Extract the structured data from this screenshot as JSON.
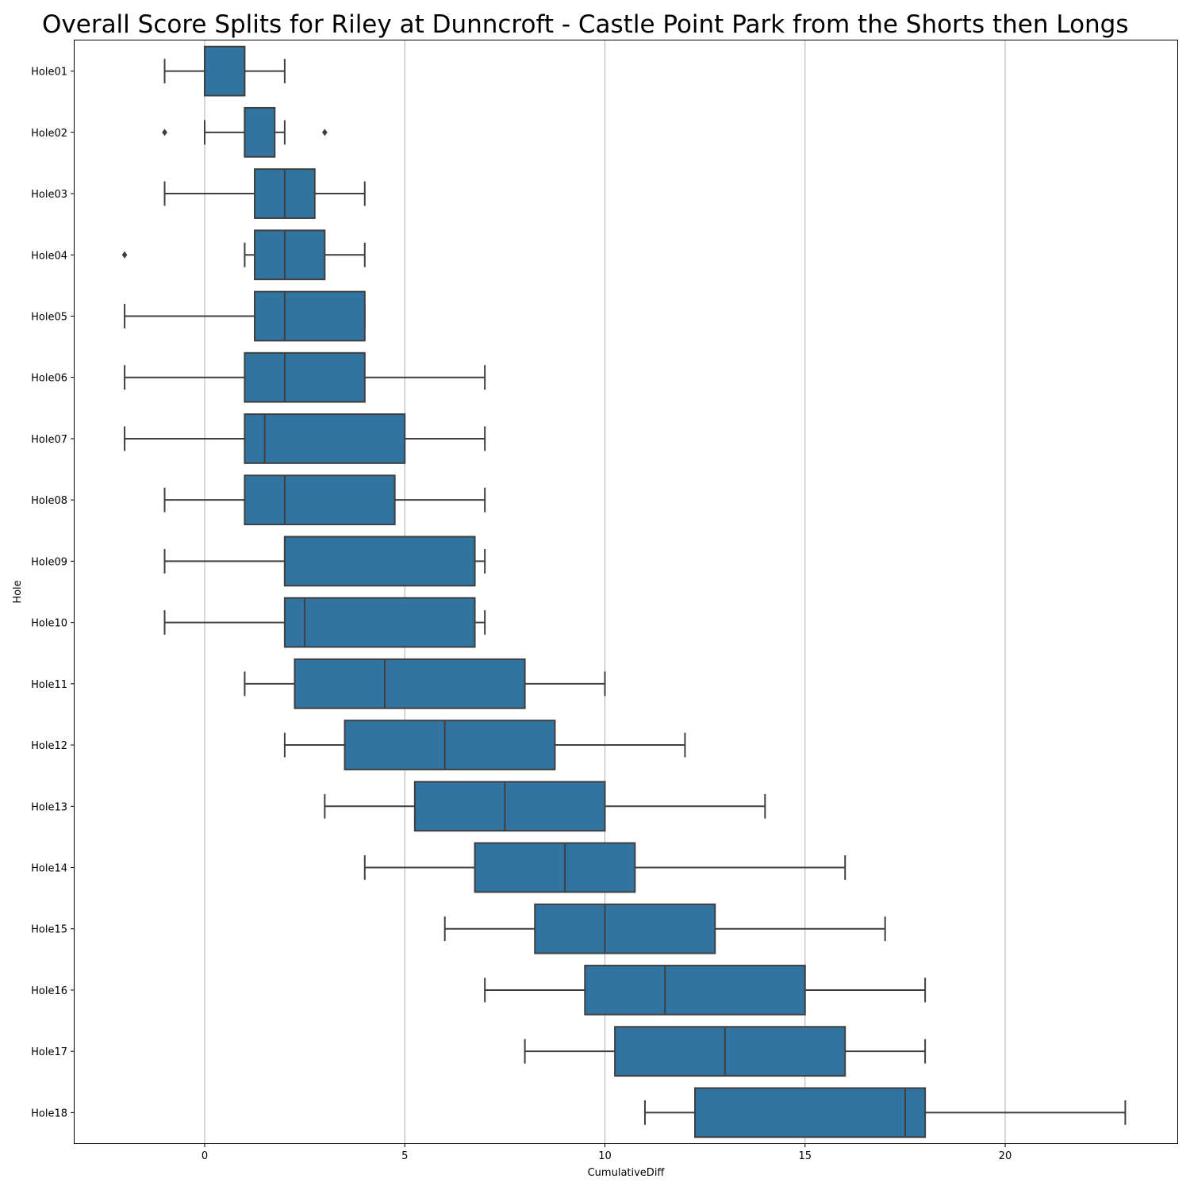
{
  "chart_data": {
    "type": "boxplot",
    "orientation": "horizontal",
    "title": "Overall Score Splits for Riley at Dunncroft - Castle Point Park from the Shorts then Longs",
    "xlabel": "CumulativeDiff",
    "ylabel": "Hole",
    "xlim": [
      -3.25,
      24.3
    ],
    "x_ticks": [
      0,
      5,
      10,
      15,
      20
    ],
    "grid": "vertical",
    "colors": {
      "box": "#3274a1",
      "line": "#3f3f3f",
      "grid": "#b0b0b0"
    },
    "categories": [
      "Hole01",
      "Hole02",
      "Hole03",
      "Hole04",
      "Hole05",
      "Hole06",
      "Hole07",
      "Hole08",
      "Hole09",
      "Hole10",
      "Hole11",
      "Hole12",
      "Hole13",
      "Hole14",
      "Hole15",
      "Hole16",
      "Hole17",
      "Hole18"
    ],
    "boxes": [
      {
        "label": "Hole01",
        "whisker_low": -1,
        "q1": 0,
        "median": 0,
        "q3": 1,
        "whisker_high": 2,
        "outliers": []
      },
      {
        "label": "Hole02",
        "whisker_low": 0,
        "q1": 1,
        "median": 1,
        "q3": 1.75,
        "whisker_high": 2,
        "outliers": [
          -1,
          3
        ]
      },
      {
        "label": "Hole03",
        "whisker_low": -1,
        "q1": 1.25,
        "median": 2,
        "q3": 2.75,
        "whisker_high": 4,
        "outliers": []
      },
      {
        "label": "Hole04",
        "whisker_low": 1,
        "q1": 1.25,
        "median": 2,
        "q3": 3,
        "whisker_high": 4,
        "outliers": [
          -2
        ]
      },
      {
        "label": "Hole05",
        "whisker_low": -2,
        "q1": 1.25,
        "median": 2,
        "q3": 4,
        "whisker_high": 4,
        "outliers": []
      },
      {
        "label": "Hole06",
        "whisker_low": -2,
        "q1": 1,
        "median": 2,
        "q3": 4,
        "whisker_high": 7,
        "outliers": []
      },
      {
        "label": "Hole07",
        "whisker_low": -2,
        "q1": 1,
        "median": 1.5,
        "q3": 5,
        "whisker_high": 7,
        "outliers": []
      },
      {
        "label": "Hole08",
        "whisker_low": -1,
        "q1": 1,
        "median": 2,
        "q3": 4.75,
        "whisker_high": 7,
        "outliers": []
      },
      {
        "label": "Hole09",
        "whisker_low": -1,
        "q1": 2,
        "median": 2,
        "q3": 6.75,
        "whisker_high": 7,
        "outliers": []
      },
      {
        "label": "Hole10",
        "whisker_low": -1,
        "q1": 2,
        "median": 2.5,
        "q3": 6.75,
        "whisker_high": 7,
        "outliers": []
      },
      {
        "label": "Hole11",
        "whisker_low": 1,
        "q1": 2.25,
        "median": 4.5,
        "q3": 8,
        "whisker_high": 10,
        "outliers": []
      },
      {
        "label": "Hole12",
        "whisker_low": 2,
        "q1": 3.5,
        "median": 6,
        "q3": 8.75,
        "whisker_high": 12,
        "outliers": []
      },
      {
        "label": "Hole13",
        "whisker_low": 3,
        "q1": 5.25,
        "median": 7.5,
        "q3": 10,
        "whisker_high": 14,
        "outliers": []
      },
      {
        "label": "Hole14",
        "whisker_low": 4,
        "q1": 6.75,
        "median": 9,
        "q3": 10.75,
        "whisker_high": 16,
        "outliers": []
      },
      {
        "label": "Hole15",
        "whisker_low": 6,
        "q1": 8.25,
        "median": 10,
        "q3": 12.75,
        "whisker_high": 17,
        "outliers": []
      },
      {
        "label": "Hole16",
        "whisker_low": 7,
        "q1": 9.5,
        "median": 11.5,
        "q3": 15,
        "whisker_high": 18,
        "outliers": []
      },
      {
        "label": "Hole17",
        "whisker_low": 8,
        "q1": 10.25,
        "median": 13,
        "q3": 16,
        "whisker_high": 18,
        "outliers": []
      },
      {
        "label": "Hole18",
        "whisker_low": 11,
        "q1": 12.25,
        "median": 17.5,
        "q3": 18,
        "whisker_high": 23,
        "outliers": []
      }
    ]
  }
}
